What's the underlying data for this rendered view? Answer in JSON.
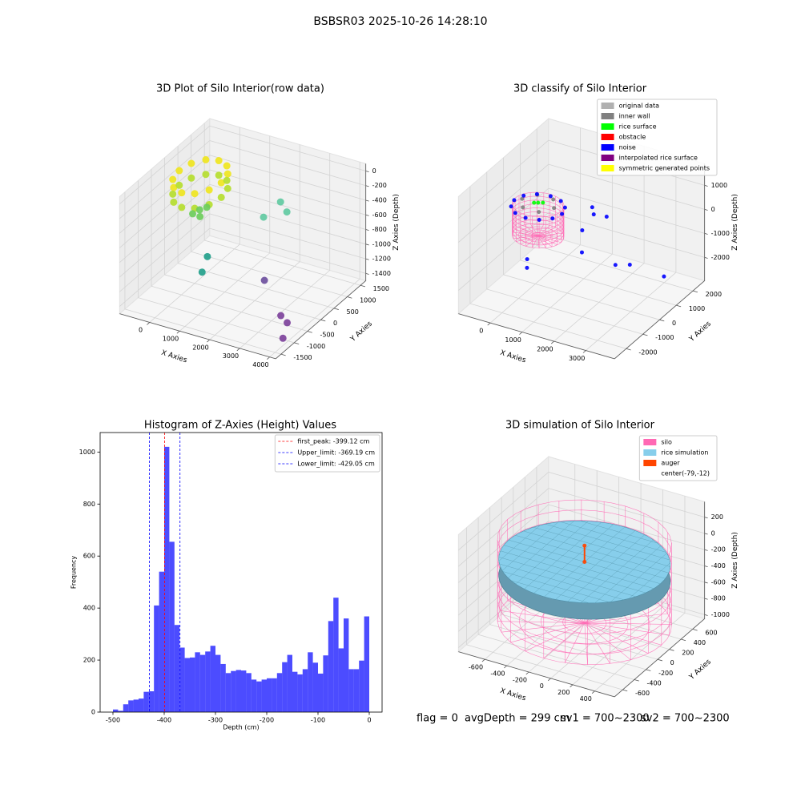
{
  "title": "BSBSR03 2025-10-26 14:28:10",
  "chart_data": [
    {
      "type": "scatter3d",
      "title": "3D Plot of Silo Interior(row data)",
      "xlabel": "X Axies",
      "ylabel": "Y Axies",
      "zlabel": "Z Axies (Depth)",
      "xlim": [
        -1000,
        4200
      ],
      "ylim": [
        -1700,
        1700
      ],
      "zlim": [
        -1500,
        100
      ],
      "xticks": [
        0,
        1000,
        2000,
        3000,
        4000
      ],
      "yticks": [
        -1500,
        -1000,
        -500,
        0,
        500,
        1000,
        1500
      ],
      "zticks": [
        -1400,
        -1200,
        -1000,
        -800,
        -600,
        -400,
        -200,
        0
      ],
      "series": [
        {
          "color": "#f0e51c",
          "x": [
            400,
            306,
            50,
            -300,
            -650,
            -906,
            -1000,
            -906,
            -650,
            -300,
            50,
            306
          ],
          "y": [
            550,
            900,
            1156,
            1250,
            1156,
            900,
            550,
            200,
            -56,
            -150,
            -56,
            200
          ],
          "z": [
            -250,
            -250,
            -250,
            -250,
            -250,
            -250,
            -250,
            -250,
            -250,
            -250,
            -250,
            -250
          ]
        },
        {
          "color": "#b5de2b",
          "x": [
            400,
            306,
            50,
            -300,
            -650,
            -906,
            -1000,
            -906,
            -650,
            -300,
            50,
            306
          ],
          "y": [
            550,
            900,
            1156,
            1250,
            1156,
            900,
            550,
            200,
            -56,
            -150,
            -56,
            200
          ],
          "z": [
            -450,
            -450,
            -450,
            -450,
            -450,
            -450,
            -450,
            -450,
            -450,
            -450,
            -450,
            -450
          ]
        },
        {
          "color": "#6ccd5a",
          "x": [
            -100,
            0,
            -200,
            50
          ],
          "y": [
            300,
            200,
            150,
            400
          ],
          "z": [
            -600,
            -650,
            -620,
            -580
          ]
        },
        {
          "color": "#5ec9a0",
          "x": [
            1800,
            2100,
            1500
          ],
          "y": [
            1200,
            1100,
            900
          ],
          "z": [
            -550,
            -620,
            -700
          ]
        },
        {
          "color": "#1f9e89",
          "x": [
            600,
            600
          ],
          "y": [
            -200,
            -400
          ],
          "z": [
            -1000,
            -1150
          ]
        },
        {
          "color": "#6a4c9c",
          "x": [
            2500
          ],
          "y": [
            -200
          ],
          "z": [
            -1100
          ]
        },
        {
          "color": "#7b3f9a",
          "x": [
            3400,
            3700,
            4000
          ],
          "y": [
            -600,
            -700,
            -1200
          ],
          "z": [
            -1350,
            -1380,
            -1400
          ]
        }
      ]
    },
    {
      "type": "scatter3d",
      "title": "3D classify of Silo Interior",
      "xlabel": "X Axies",
      "ylabel": "Y Axies",
      "zlabel": "Z Axies (Depth)",
      "xlim": [
        -1000,
        3900
      ],
      "ylim": [
        -2700,
        2700
      ],
      "zlim": [
        -2970,
        1900
      ],
      "xticks": [
        0,
        1000,
        2000,
        3000
      ],
      "yticks": [
        -2000,
        -1000,
        0,
        1000,
        2000
      ],
      "zticks": [
        -2000,
        -1000,
        0,
        1000
      ],
      "legend": "upper right",
      "series": [
        {
          "color": "#ff69b4",
          "shape": "cylinder",
          "center": [
            -150,
            450
          ],
          "radius": 720,
          "z": [
            -1300,
            0
          ]
        },
        {
          "name": "original data",
          "color": "#b0b0b0",
          "x": [],
          "y": [],
          "z": []
        },
        {
          "name": "inner wall",
          "color": "#808080",
          "x": [
            350,
            100,
            -400,
            -650,
            -400,
            100
          ],
          "y": [
            450,
            883,
            883,
            450,
            17,
            17
          ],
          "z": [
            50,
            50,
            50,
            50,
            50,
            50
          ]
        },
        {
          "name": "rice surface",
          "color": "#00ff00",
          "x": [
            -150,
            -50,
            -250
          ],
          "y": [
            450,
            550,
            400
          ],
          "z": [
            80,
            60,
            70
          ]
        },
        {
          "name": "obstacle",
          "color": "#ff0000",
          "x": [],
          "y": [],
          "z": []
        },
        {
          "name": "noise",
          "color": "#0000ff",
          "x": [
            600,
            500,
            225,
            -150,
            -525,
            -800,
            -900,
            -800,
            -525,
            -150,
            225,
            500,
            1000,
            1100,
            1400,
            1000,
            1200,
            2200,
            2600,
            -100,
            0,
            3200
          ],
          "y": [
            450,
            825,
            1100,
            1200,
            1100,
            825,
            450,
            75,
            -200,
            -300,
            -200,
            75,
            1500,
            1400,
            1600,
            900,
            500,
            600,
            700,
            -300,
            -500,
            1600
          ],
          "z": [
            -100,
            -100,
            -100,
            -100,
            -100,
            -100,
            -100,
            -100,
            -100,
            -100,
            -100,
            -100,
            -300,
            -500,
            -600,
            -900,
            -1500,
            -1700,
            -1600,
            -1800,
            -2000,
            -2400
          ]
        },
        {
          "name": "interpolated rice surface",
          "color": "#800080",
          "x": [],
          "y": [],
          "z": []
        },
        {
          "name": "symmetric generated points",
          "color": "#ffff00",
          "x": [],
          "y": [],
          "z": []
        }
      ]
    },
    {
      "type": "hist",
      "title": "Histogram of Z-Axies (Height) Values",
      "xlabel": "Depth (cm)",
      "ylabel": "Frequency",
      "color": "#0000ff",
      "xlim": [
        -525,
        25
      ],
      "ylim": [
        0,
        1075
      ],
      "xticks": [
        -500,
        -400,
        -300,
        -200,
        -100,
        0
      ],
      "yticks": [
        0,
        200,
        400,
        600,
        800,
        1000
      ],
      "legend": "upper right",
      "bins": [
        -500,
        -490,
        -480,
        -470,
        -460,
        -450,
        -440,
        -430,
        -420,
        -410,
        -400,
        -390,
        -380,
        -370,
        -360,
        -350,
        -340,
        -330,
        -320,
        -310,
        -300,
        -290,
        -280,
        -270,
        -260,
        -250,
        -240,
        -230,
        -220,
        -210,
        -200,
        -190,
        -180,
        -170,
        -160,
        -150,
        -140,
        -130,
        -120,
        -110,
        -100,
        -90,
        -80,
        -70,
        -60,
        -50,
        -40,
        -30,
        -20,
        -10,
        0
      ],
      "counts": [
        10,
        5,
        30,
        45,
        48,
        52,
        78,
        80,
        410,
        540,
        1020,
        655,
        335,
        248,
        208,
        210,
        230,
        220,
        233,
        255,
        220,
        185,
        150,
        158,
        162,
        160,
        150,
        125,
        118,
        125,
        130,
        130,
        150,
        192,
        220,
        155,
        145,
        165,
        230,
        190,
        148,
        218,
        350,
        440,
        245,
        360,
        165,
        165,
        198,
        368
      ],
      "vlines": [
        {
          "value": -399.12,
          "label": "first_peak: -399.12 cm",
          "color": "#ff0000"
        },
        {
          "value": -369.19,
          "label": "Upper_limit: -369.19 cm",
          "color": "#0000ff"
        },
        {
          "value": -429.05,
          "label": "Lower_limit: -429.05 cm",
          "color": "#0000ff"
        }
      ]
    },
    {
      "type": "scatter3d",
      "title": "3D simulation of Silo Interior",
      "xlabel": "X Axies",
      "ylabel": "Y Axies",
      "zlabel": "Z Axies (Depth)",
      "xlim": [
        -840,
        580
      ],
      "ylim": [
        -740,
        805
      ],
      "zlim": [
        -1050,
        390
      ],
      "xticks": [
        -600,
        -400,
        -200,
        0,
        200,
        400
      ],
      "yticks": [
        -600,
        -400,
        -200,
        0,
        200,
        400,
        600
      ],
      "zticks": [
        -1000,
        -800,
        -600,
        -400,
        -200,
        0,
        200
      ],
      "legend": "upper right",
      "series": [
        {
          "name": "silo",
          "color": "#ff69b4",
          "shape": "cylinder",
          "center": [
            -79,
            -12
          ],
          "radius": 700,
          "z": [
            -850,
            150
          ]
        },
        {
          "name": "rice simulation",
          "color": "#87ceeb",
          "shape": "disc",
          "center": [
            -79,
            -12
          ],
          "radius": 690,
          "z": [
            -300,
            -100
          ]
        },
        {
          "name": "auger",
          "color": "#ff4500",
          "x": [
            -79,
            -79
          ],
          "y": [
            -12,
            -12
          ],
          "z": [
            -100,
            100
          ]
        },
        {
          "name": "center(-79,-12)",
          "color": "#ffffff"
        }
      ]
    }
  ],
  "footer": [
    "flag = 0",
    "avgDepth = 299 cm",
    "sv1 = 700~2300",
    "sv2 = 700~2300"
  ]
}
